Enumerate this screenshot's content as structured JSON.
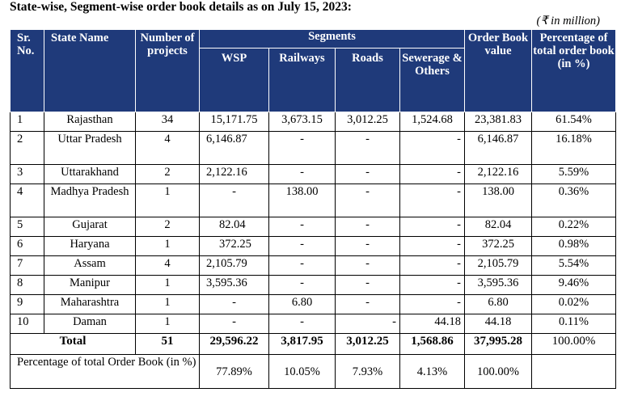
{
  "title": "State-wise, Segment-wise order book details as on July 15, 2023:",
  "units_note": "(₹ in million)",
  "headers": {
    "sr_no": "Sr. No.",
    "state_name": "State Name",
    "number_of_projects": "Number of projects",
    "segments": "Segments",
    "wsp": "WSP",
    "railways": "Railways",
    "roads": "Roads",
    "sewerage": "Sewerage & Others",
    "order_book_value": "Order Book value",
    "percentage": "Percentage of total order book (in %)"
  },
  "rows": [
    {
      "sr": "1",
      "state": "Rajasthan",
      "projects": "34",
      "wsp": "15,171.75",
      "railways": "3,673.15",
      "roads": "3,012.25",
      "sewerage": "1,524.68",
      "value": "23,381.83",
      "pct": "61.54%"
    },
    {
      "sr": "2",
      "state": "Uttar Pradesh",
      "projects": "4",
      "wsp": "6,146.87",
      "railways": "-",
      "roads": "-",
      "sewerage": "-",
      "value": "6,146.87",
      "pct": "16.18%"
    },
    {
      "sr": "3",
      "state": "Uttarakhand",
      "projects": "2",
      "wsp": "2,122.16",
      "railways": "-",
      "roads": "-",
      "sewerage": "-",
      "value": "2,122.16",
      "pct": "5.59%"
    },
    {
      "sr": "4",
      "state": "Madhya Pradesh",
      "projects": "1",
      "wsp": "-",
      "railways": "138.00",
      "roads": "-",
      "sewerage": "-",
      "value": "138.00",
      "pct": "0.36%"
    },
    {
      "sr": "5",
      "state": "Gujarat",
      "projects": "2",
      "wsp": "82.04",
      "railways": "-",
      "roads": "-",
      "sewerage": "-",
      "value": "82.04",
      "pct": "0.22%"
    },
    {
      "sr": "6",
      "state": "Haryana",
      "projects": "1",
      "wsp": "372.25",
      "railways": "-",
      "roads": "-",
      "sewerage": "-",
      "value": "372.25",
      "pct": "0.98%"
    },
    {
      "sr": "7",
      "state": "Assam",
      "projects": "4",
      "wsp": "2,105.79",
      "railways": "-",
      "roads": "-",
      "sewerage": "-",
      "value": "2,105.79",
      "pct": "5.54%"
    },
    {
      "sr": "8",
      "state": "Manipur",
      "projects": "1",
      "wsp": "3,595.36",
      "railways": "-",
      "roads": "-",
      "sewerage": "-",
      "value": "3,595.36",
      "pct": "9.46%"
    },
    {
      "sr": "9",
      "state": "Maharashtra",
      "projects": "1",
      "wsp": "-",
      "railways": "6.80",
      "roads": "-",
      "sewerage": "-",
      "value": "6.80",
      "pct": "0.02%"
    },
    {
      "sr": "10",
      "state": "Daman",
      "projects": "1",
      "wsp": "-",
      "railways": "-",
      "roads": "-",
      "sewerage": "44.18",
      "value": "44.18",
      "pct": "0.11%"
    }
  ],
  "total": {
    "label": "Total",
    "projects": "51",
    "wsp": "29,596.22",
    "railways": "3,817.95",
    "roads": "3,012.25",
    "sewerage": "1,568.86",
    "value": "37,995.28",
    "pct": "100.00%"
  },
  "percentage_row": {
    "label": "Percentage of total Order Book (in %)",
    "wsp": "77.89%",
    "railways": "10.05%",
    "roads": "7.93%",
    "sewerage": "4.13%",
    "value": "100.00%"
  },
  "colors": {
    "header_bg": "#1f3a7a",
    "header_text": "#ffffff"
  }
}
